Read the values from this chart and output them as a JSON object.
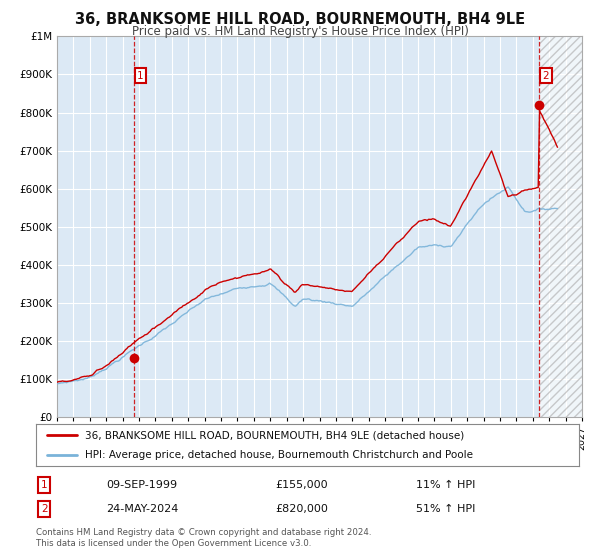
{
  "title1": "36, BRANKSOME HILL ROAD, BOURNEMOUTH, BH4 9LE",
  "title2": "Price paid vs. HM Land Registry's House Price Index (HPI)",
  "bg_color": "#dce9f5",
  "fig_bg_color": "#ffffff",
  "hpi_color": "#7ab3d9",
  "price_color": "#cc0000",
  "sale1_year": 1999.69,
  "sale1_price": 155000,
  "sale2_year": 2024.39,
  "sale2_price": 820000,
  "sale1_info": "09-SEP-1999",
  "sale1_amount": "£155,000",
  "sale1_hpi": "11% ↑ HPI",
  "sale2_info": "24-MAY-2024",
  "sale2_amount": "£820,000",
  "sale2_hpi": "51% ↑ HPI",
  "legend_label1": "36, BRANKSOME HILL ROAD, BOURNEMOUTH, BH4 9LE (detached house)",
  "legend_label2": "HPI: Average price, detached house, Bournemouth Christchurch and Poole",
  "footer": "Contains HM Land Registry data © Crown copyright and database right 2024.\nThis data is licensed under the Open Government Licence v3.0.",
  "ylim_max": 1000000,
  "xmin": 1995.0,
  "xmax": 2027.0
}
